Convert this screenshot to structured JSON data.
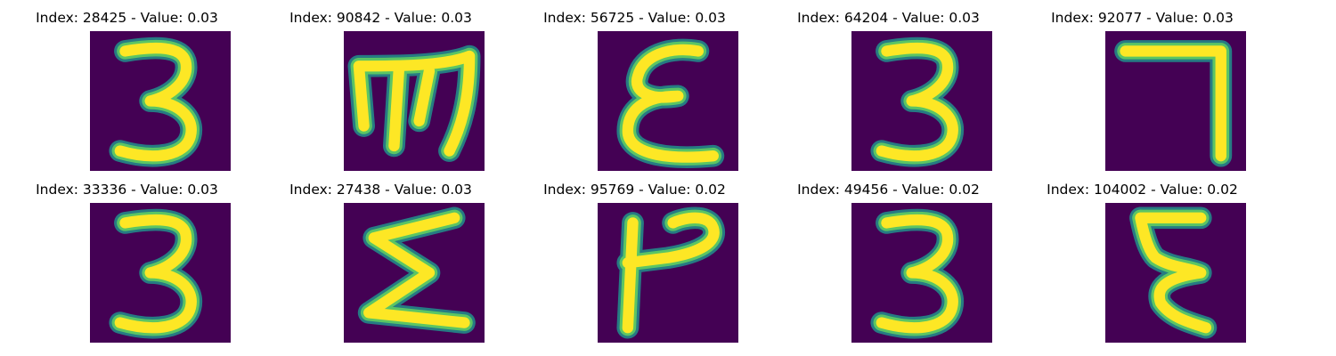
{
  "panels": [
    {
      "title": "Index: 28425 - Value: 0.03",
      "glyph": "three"
    },
    {
      "title": "Index: 90842 - Value: 0.03",
      "glyph": "m-shape"
    },
    {
      "title": "Index: 56725 - Value: 0.03",
      "glyph": "epsilon"
    },
    {
      "title": "Index: 64204 - Value: 0.03",
      "glyph": "three"
    },
    {
      "title": "Index: 92077 - Value: 0.03",
      "glyph": "seven"
    },
    {
      "title": "Index: 33336 - Value: 0.03",
      "glyph": "three"
    },
    {
      "title": "Index: 27438 - Value: 0.03",
      "glyph": "sigma"
    },
    {
      "title": "Index: 95769 - Value: 0.02",
      "glyph": "rotated-p"
    },
    {
      "title": "Index: 49456 - Value: 0.02",
      "glyph": "three"
    },
    {
      "title": "Index: 104002 - Value: 0.02",
      "glyph": "xi"
    }
  ],
  "colors": {
    "background": "#440154",
    "stroke_edge": "#21918c",
    "stroke_mid": "#5ec962",
    "stroke_core": "#fde725"
  }
}
